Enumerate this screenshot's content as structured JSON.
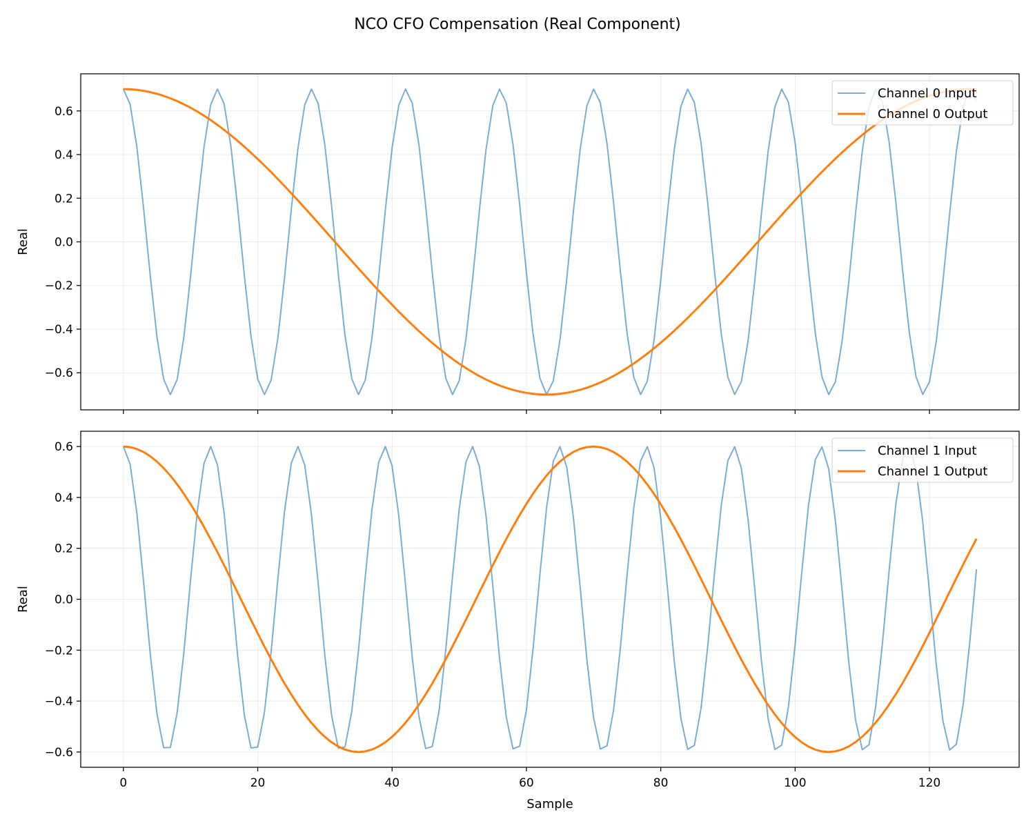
{
  "figure": {
    "title": "NCO CFO Compensation (Real Component)"
  },
  "chart_data": [
    {
      "type": "line",
      "title": "",
      "xlabel": "",
      "ylabel": "Real",
      "xlim": [
        -6.35,
        133.35
      ],
      "ylim": [
        -0.77,
        0.77
      ],
      "x_ticks": [
        0,
        20,
        40,
        60,
        80,
        100,
        120
      ],
      "x_tick_labels_visible": false,
      "y_ticks": [
        0.6,
        0.4,
        0.2,
        0.0,
        -0.2,
        -0.4,
        -0.6
      ],
      "y_tick_labels": [
        "0.6",
        "0.4",
        "0.2",
        "0.0",
        "−0.2",
        "−0.4",
        "−0.6"
      ],
      "grid": true,
      "legend_position": "top-right",
      "n_samples": 128,
      "series": [
        {
          "name": "Channel 0 Input",
          "color": "#1f77b4",
          "opacity": 0.6,
          "line_width": 2,
          "amplitude": 0.7,
          "freq": 0.071375,
          "phase": 0
        },
        {
          "name": "Channel 0 Output",
          "color": "#ff7f0e",
          "opacity": 1,
          "line_width": 3,
          "amplitude": 0.7,
          "freq": 0.00794,
          "phase": 0
        }
      ]
    },
    {
      "type": "line",
      "title": "",
      "xlabel": "Sample",
      "ylabel": "Real",
      "xlim": [
        -6.35,
        133.35
      ],
      "ylim": [
        -0.66,
        0.66
      ],
      "x_ticks": [
        0,
        20,
        40,
        60,
        80,
        100,
        120
      ],
      "x_tick_labels": [
        "0",
        "20",
        "40",
        "60",
        "80",
        "100",
        "120"
      ],
      "y_ticks": [
        0.6,
        0.4,
        0.2,
        0.0,
        -0.2,
        -0.4,
        -0.6
      ],
      "y_tick_labels": [
        "0.6",
        "0.4",
        "0.2",
        "0.0",
        "−0.2",
        "−0.4",
        "−0.6"
      ],
      "grid": true,
      "legend_position": "top-right",
      "n_samples": 128,
      "series": [
        {
          "name": "Channel 1 Input",
          "color": "#1f77b4",
          "opacity": 0.6,
          "line_width": 2,
          "amplitude": 0.6,
          "freq": 0.07702,
          "phase": 0
        },
        {
          "name": "Channel 1 Output",
          "color": "#ff7f0e",
          "opacity": 1,
          "line_width": 3,
          "amplitude": 0.6,
          "freq": 0.01429,
          "phase": 0
        }
      ]
    }
  ]
}
